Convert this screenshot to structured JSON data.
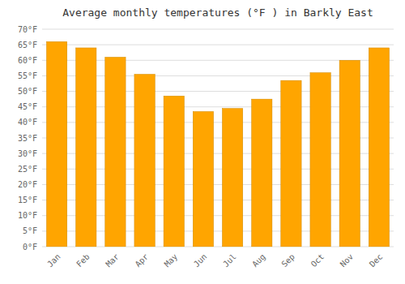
{
  "chart_data": {
    "type": "bar",
    "title": "Average monthly temperatures (°F ) in Barkly East",
    "categories": [
      "Jan",
      "Feb",
      "Mar",
      "Apr",
      "May",
      "Jun",
      "Jul",
      "Aug",
      "Sep",
      "Oct",
      "Nov",
      "Dec"
    ],
    "values": [
      66,
      64,
      61,
      55.5,
      48.5,
      43.5,
      44.5,
      47.5,
      53.5,
      56,
      60,
      64
    ],
    "color": "#FFA500",
    "ylim": [
      0,
      70
    ],
    "yticks": [
      {
        "value": 0,
        "label": "0°F"
      },
      {
        "value": 5,
        "label": "5°F"
      },
      {
        "value": 10,
        "label": "10°F"
      },
      {
        "value": 15,
        "label": "15°F"
      },
      {
        "value": 20,
        "label": "20°F"
      },
      {
        "value": 25,
        "label": "25°F"
      },
      {
        "value": 30,
        "label": "30°F"
      },
      {
        "value": 35,
        "label": "35°F"
      },
      {
        "value": 40,
        "label": "40°F"
      },
      {
        "value": 45,
        "label": "45°F"
      },
      {
        "value": 50,
        "label": "50°F"
      },
      {
        "value": 55,
        "label": "55°F"
      },
      {
        "value": 60,
        "label": "60°F"
      },
      {
        "value": 65,
        "label": "65°F"
      },
      {
        "value": 70,
        "label": "70°F"
      }
    ],
    "grid": true
  }
}
